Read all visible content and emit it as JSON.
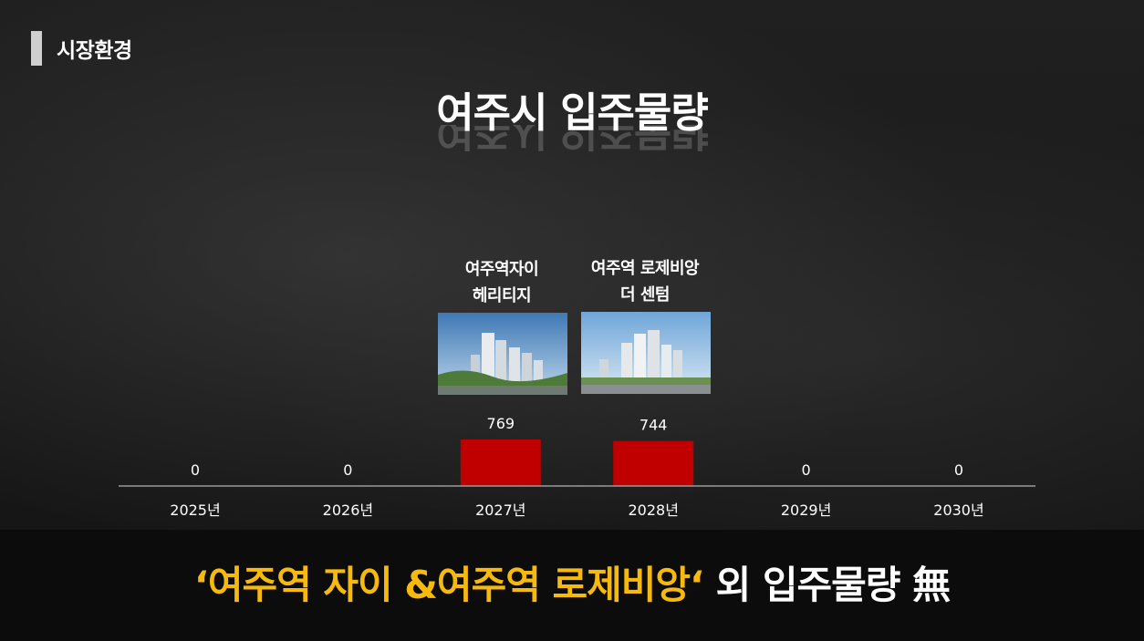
{
  "section": {
    "label": "시장환경"
  },
  "title": "여주시 입주물량",
  "projects": [
    {
      "name_line1": "여주역자이",
      "name_line2": "헤리티지",
      "year": "2027년"
    },
    {
      "name_line1": "여주역 로제비앙",
      "name_line2": "더 센텀",
      "year": "2028년"
    }
  ],
  "chart_data": {
    "type": "bar",
    "categories": [
      "2025년",
      "2026년",
      "2027년",
      "2028년",
      "2029년",
      "2030년"
    ],
    "values": [
      0,
      0,
      769,
      744,
      0,
      0
    ],
    "value_labels": [
      "0",
      "0",
      "769",
      "744",
      "0",
      "0"
    ],
    "title": "여주시 입주물량",
    "xlabel": "",
    "ylabel": "",
    "ylim": [
      0,
      800
    ],
    "grid": false,
    "colors": {
      "bar": "#c00000",
      "axis": "#9a9a9a",
      "label": "#ffffff"
    }
  },
  "headline": {
    "highlight": "‘여주역 자이 &여주역 로제비앙‘",
    "rest": " 외 입주물량 無"
  },
  "colors": {
    "accent_red": "#c00000",
    "accent_yellow": "#f6b90e"
  }
}
